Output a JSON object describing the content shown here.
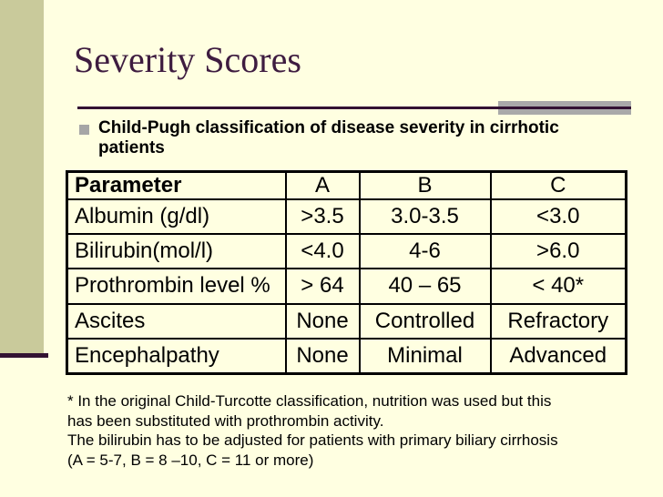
{
  "slide": {
    "title": "Severity Scores",
    "bullet": "Child-Pugh classification of disease severity in cirrhotic patients",
    "table": {
      "headers": [
        "Parameter",
        "A",
        "B",
        "C"
      ],
      "rows": [
        [
          "Albumin (g/dl)",
          ">3.5",
          "3.0-3.5",
          "<3.0"
        ],
        [
          "Bilirubin(mol/l)",
          "<4.0",
          "4-6",
          ">6.0"
        ],
        [
          "Prothrombin level %",
          "> 64",
          "40 – 65",
          "< 40*"
        ],
        [
          "Ascites",
          "None",
          "Controlled",
          "Refractory"
        ],
        [
          "Encephalpathy",
          "None",
          "Minimal",
          "Advanced"
        ]
      ]
    },
    "footnote_lines": [
      "* In the original Child-Turcotte classification, nutrition was used but this",
      "has been substituted with prothrombin activity.",
      "The bilirubin has to be adjusted for patients with primary biliary cirrhosis",
      "(A = 5-7, B = 8 –10, C = 11 or more)"
    ],
    "colors": {
      "background": "#FFFFE1",
      "sidebar_olive": "#C9CA9B",
      "accent_dark_purple": "#331233",
      "title_text": "#3E1C40",
      "rule_gray": "#A9A9A9",
      "bullet_square_gray": "#A6A6A6",
      "table_border": "#000000",
      "body_text": "#000000"
    }
  }
}
